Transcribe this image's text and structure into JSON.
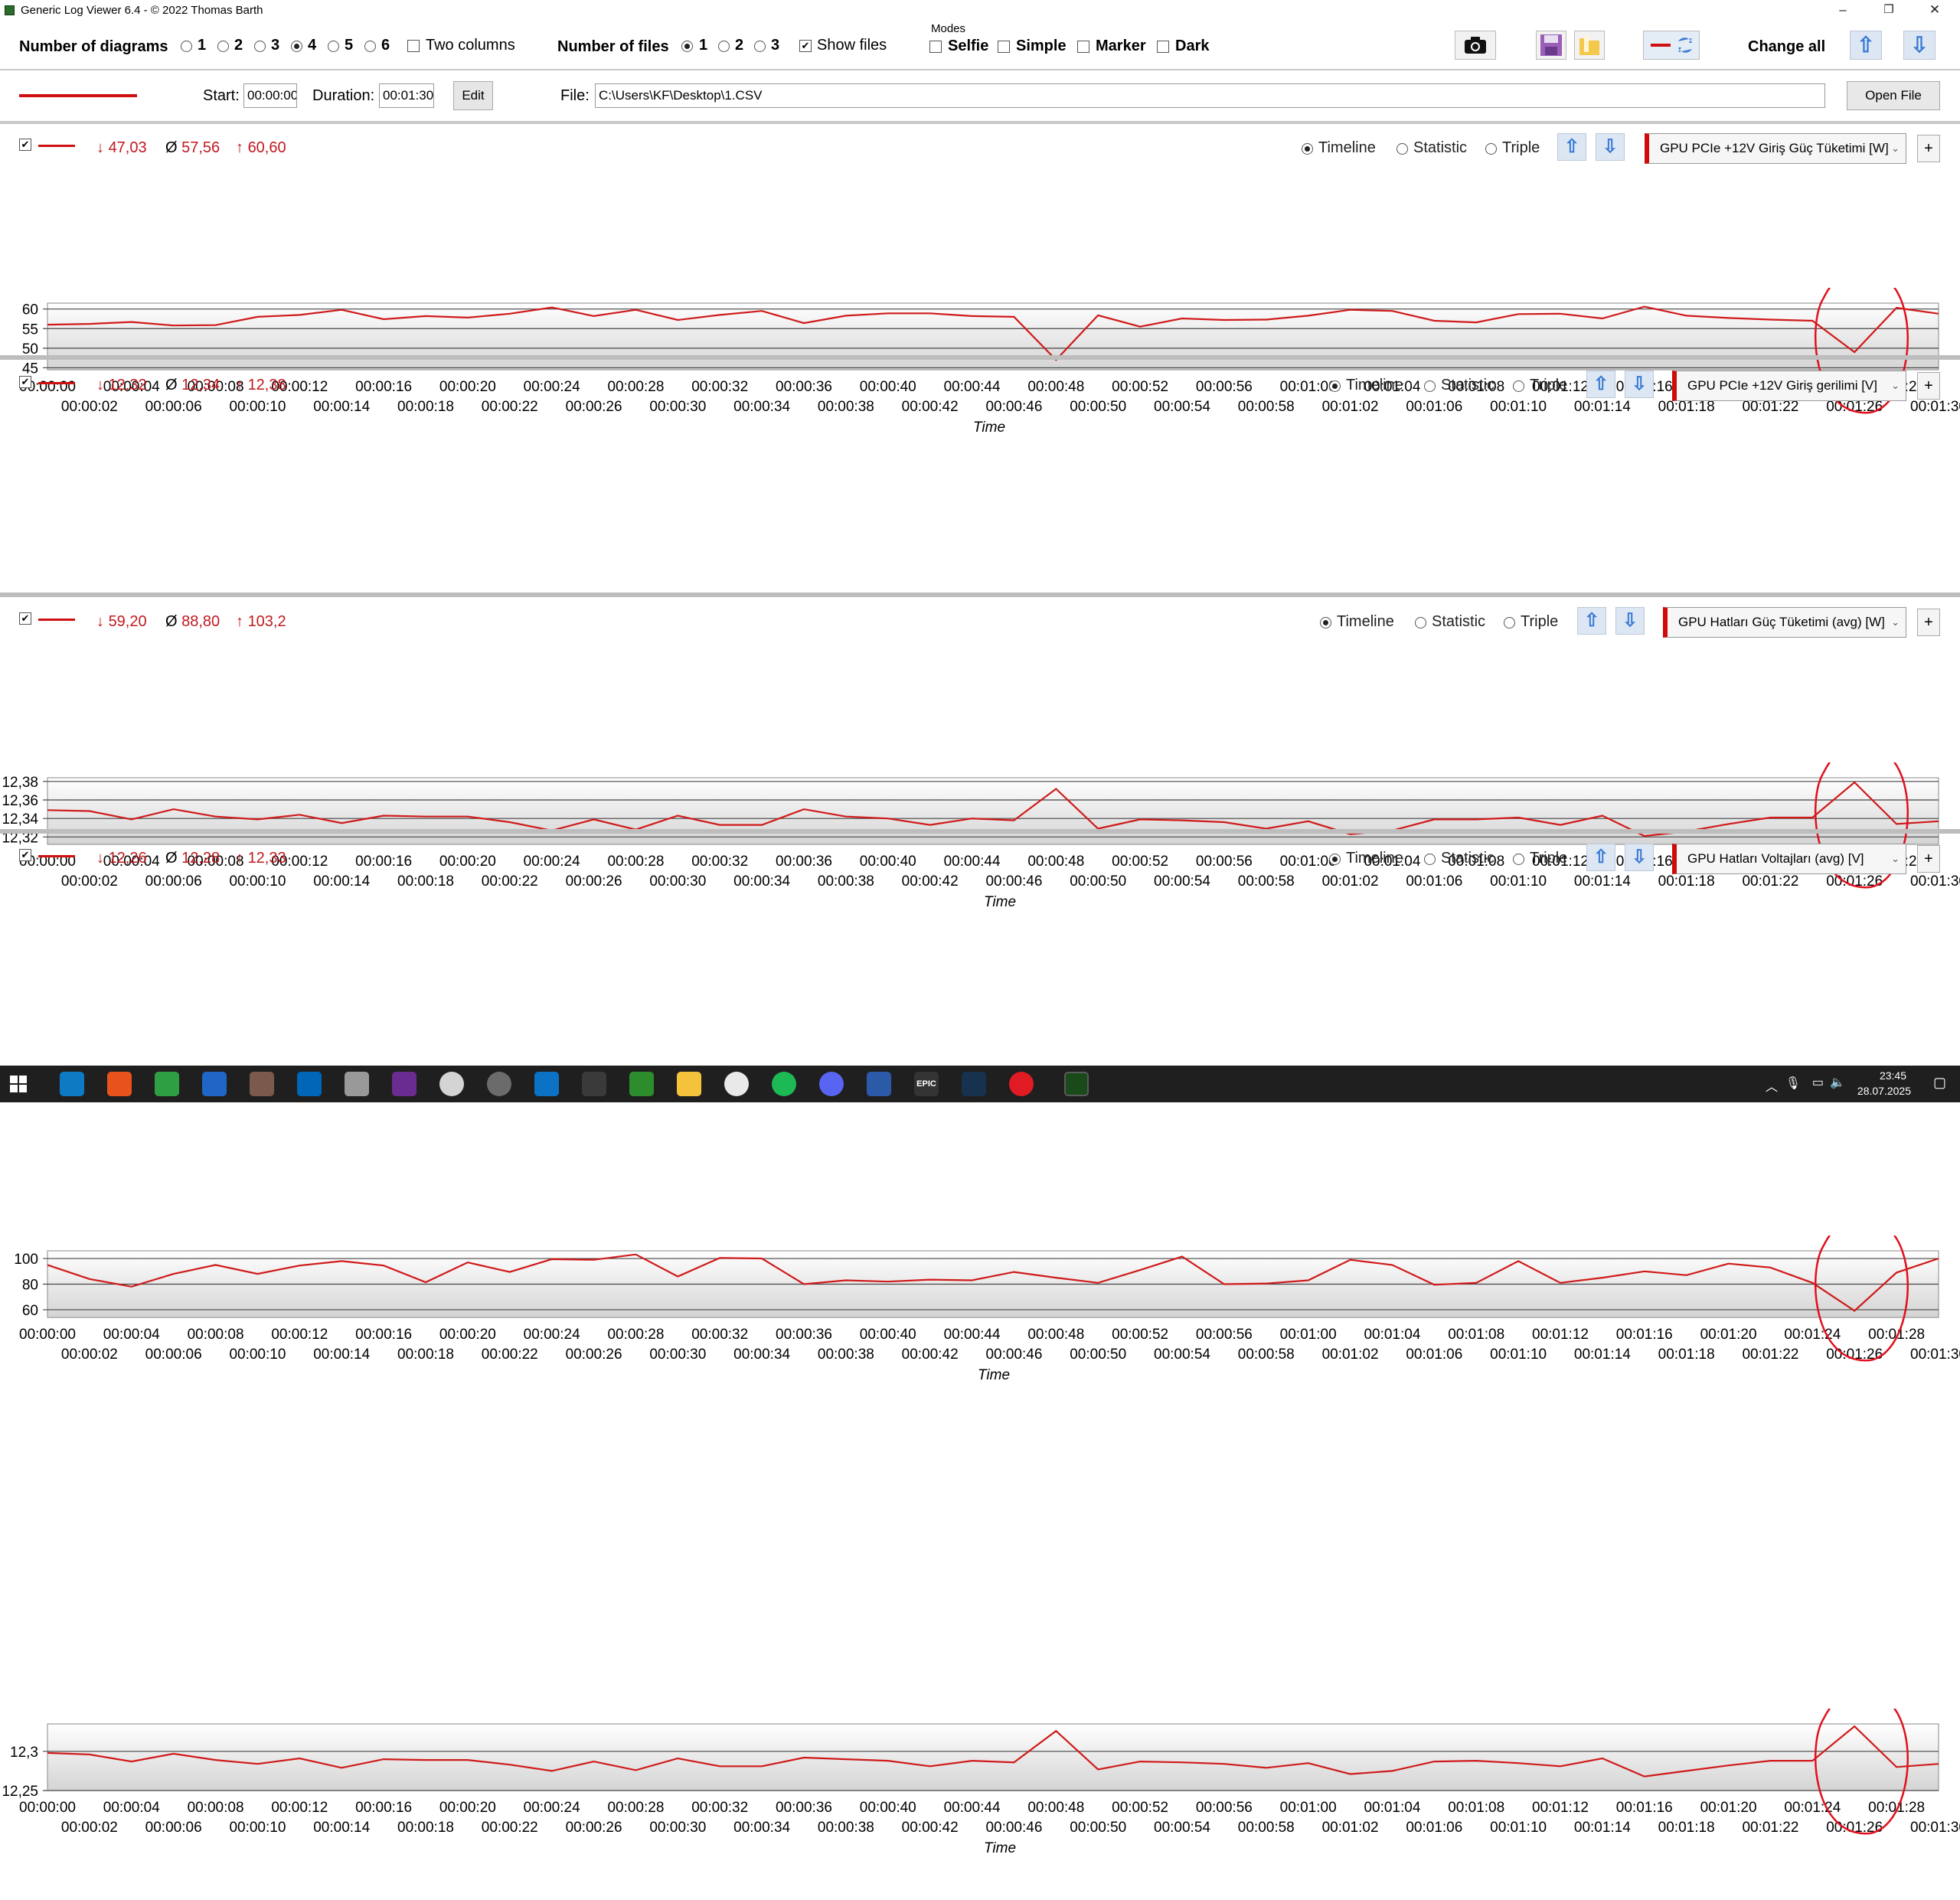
{
  "window": {
    "title": "Generic Log Viewer 6.4 - © 2022 Thomas Barth",
    "controls": [
      "–",
      "❐",
      "✕"
    ]
  },
  "toolbar": {
    "num_diagrams_label": "Number of diagrams",
    "diagram_options": [
      "1",
      "2",
      "3",
      "4",
      "5",
      "6"
    ],
    "diagram_selected": "4",
    "two_columns_label": "Two columns",
    "num_files_label": "Number of files",
    "file_options": [
      "1",
      "2",
      "3"
    ],
    "file_selected": "1",
    "show_files_label": "Show files",
    "modes_label": "Modes",
    "modes": [
      "Selfie",
      "Simple",
      "Marker",
      "Dark"
    ],
    "change_all_label": "Change all",
    "icons": [
      "camera-icon",
      "save-icon",
      "folder-icon",
      "line-swap-icon",
      "arrow-up-icon",
      "arrow-down-icon"
    ]
  },
  "filebar": {
    "start_label": "Start:",
    "start_value": "00:00:00",
    "duration_label": "Duration:",
    "duration_value": "00:01:30",
    "edit_label": "Edit",
    "file_label": "File:",
    "file_value": "C:\\Users\\KF\\Desktop\\1.CSV",
    "open_file_label": "Open File"
  },
  "view_modes": [
    "Timeline",
    "Statistic",
    "Triple"
  ],
  "time_axis": {
    "label": "Time",
    "ticks_top": [
      "00:00:00",
      "00:00:04",
      "00:00:08",
      "00:00:12",
      "00:00:16",
      "00:00:20",
      "00:00:24",
      "00:00:28",
      "00:00:32",
      "00:00:36",
      "00:00:40",
      "00:00:44",
      "00:00:48",
      "00:00:52",
      "00:00:56",
      "00:01:00",
      "00:01:04",
      "00:01:08",
      "00:01:12",
      "00:01:16",
      "00:01:20",
      "00:01:24",
      "00:01:28"
    ],
    "ticks_bottom": [
      "00:00:02",
      "00:00:06",
      "00:00:10",
      "00:00:14",
      "00:00:18",
      "00:00:22",
      "00:00:26",
      "00:00:30",
      "00:00:34",
      "00:00:38",
      "00:00:42",
      "00:00:46",
      "00:00:50",
      "00:00:54",
      "00:00:58",
      "00:01:02",
      "00:01:06",
      "00:01:10",
      "00:01:14",
      "00:01:18",
      "00:01:22",
      "00:01:26",
      "00:01:30"
    ]
  },
  "colors": {
    "series": "#d01a1a",
    "annotation": "#e0101e",
    "selector_bar": "#d00a0a"
  },
  "panels": [
    {
      "min": "47,03",
      "avg": "57,56",
      "max": "60,60",
      "view_selected": "Timeline",
      "sensor": "GPU PCIe +12V Giriş Güç Tüketimi [W]",
      "y_ticks": [
        "60",
        "55",
        "50",
        "45"
      ],
      "ylim": [
        44.5,
        61.5
      ],
      "y_values": [
        60,
        55,
        50,
        45
      ]
    },
    {
      "min": "12,32",
      "avg": "12,34",
      "max": "12,38",
      "view_selected": "Timeline",
      "sensor": "GPU PCIe +12V Giriş gerilimi [V]",
      "y_ticks": [
        "12,38",
        "12,36",
        "12,34",
        "12,32"
      ],
      "ylim": [
        12.312,
        12.384
      ],
      "y_values": [
        12.38,
        12.36,
        12.34,
        12.32
      ]
    },
    {
      "min": "59,20",
      "avg": "88,80",
      "max": "103,2",
      "view_selected": "Timeline",
      "sensor": "GPU Hatları Güç Tüketimi (avg) [W]",
      "y_ticks": [
        "100",
        "80",
        "60"
      ],
      "ylim": [
        54,
        106
      ],
      "y_values": [
        100,
        80,
        60
      ]
    },
    {
      "min": "12,26",
      "avg": "12,28",
      "max": "12,33",
      "view_selected": "Timeline",
      "sensor": "GPU Hatları Voltajları (avg) [V]",
      "y_ticks": [
        "12,3",
        "12,25"
      ],
      "ylim": [
        12.25,
        12.335
      ],
      "y_values": [
        12.3,
        12.25
      ]
    }
  ],
  "chart_data": [
    {
      "type": "line",
      "series": [
        {
          "name": "GPU PCIe +12V Giriş Güç Tüketimi [W]",
          "x": [
            0,
            2,
            4,
            6,
            8,
            10,
            12,
            14,
            16,
            18,
            20,
            22,
            24,
            26,
            28,
            30,
            32,
            34,
            36,
            38,
            40,
            42,
            44,
            46,
            48,
            50,
            52,
            54,
            56,
            58,
            60,
            62,
            64,
            66,
            68,
            70,
            72,
            74,
            76,
            78,
            80,
            82,
            84,
            86,
            88,
            90
          ],
          "values": [
            56.0,
            56.2,
            56.7,
            55.8,
            55.9,
            58.0,
            58.5,
            59.8,
            57.4,
            58.2,
            57.8,
            58.8,
            60.4,
            58.2,
            59.8,
            57.2,
            58.5,
            59.5,
            56.4,
            58.3,
            58.9,
            58.9,
            58.2,
            58.0,
            47.0,
            58.4,
            55.5,
            57.6,
            57.2,
            57.3,
            58.3,
            59.8,
            59.5,
            57.0,
            56.6,
            58.7,
            58.8,
            57.6,
            60.6,
            58.3,
            57.7,
            57.3,
            57.0,
            49.0,
            60.3,
            58.8
          ]
        }
      ],
      "xlabel": "Time",
      "ylim": [
        44.5,
        61.5
      ]
    },
    {
      "type": "line",
      "series": [
        {
          "name": "GPU PCIe +12V Giriş gerilimi [V]",
          "x": [
            0,
            2,
            4,
            6,
            8,
            10,
            12,
            14,
            16,
            18,
            20,
            22,
            24,
            26,
            28,
            30,
            32,
            34,
            36,
            38,
            40,
            42,
            44,
            46,
            48,
            50,
            52,
            54,
            56,
            58,
            60,
            62,
            64,
            66,
            68,
            70,
            72,
            74,
            76,
            78,
            80,
            82,
            84,
            86,
            88,
            90
          ],
          "values": [
            12.349,
            12.348,
            12.339,
            12.35,
            12.342,
            12.339,
            12.344,
            12.335,
            12.343,
            12.342,
            12.342,
            12.336,
            12.327,
            12.339,
            12.328,
            12.343,
            12.333,
            12.333,
            12.35,
            12.342,
            12.34,
            12.333,
            12.34,
            12.338,
            12.372,
            12.329,
            12.339,
            12.338,
            12.336,
            12.329,
            12.337,
            12.323,
            12.327,
            12.339,
            12.339,
            12.341,
            12.333,
            12.343,
            12.321,
            12.326,
            12.334,
            12.341,
            12.341,
            12.379,
            12.334,
            12.337
          ]
        }
      ],
      "xlabel": "Time",
      "ylim": [
        12.312,
        12.384
      ]
    },
    {
      "type": "line",
      "series": [
        {
          "name": "GPU Hatları Güç Tüketimi (avg) [W]",
          "x": [
            0,
            2,
            4,
            6,
            8,
            10,
            12,
            14,
            16,
            18,
            20,
            22,
            24,
            26,
            28,
            30,
            32,
            34,
            36,
            38,
            40,
            42,
            44,
            46,
            48,
            50,
            52,
            54,
            56,
            58,
            60,
            62,
            64,
            66,
            68,
            70,
            72,
            74,
            76,
            78,
            80,
            82,
            84,
            86,
            88,
            90
          ],
          "values": [
            95.0,
            84.0,
            78.0,
            88.0,
            95.0,
            88.0,
            94.5,
            98.0,
            94.5,
            81.5,
            97.0,
            89.5,
            99.5,
            99.0,
            103.2,
            86.0,
            100.5,
            100.0,
            80.0,
            83.0,
            82.0,
            83.5,
            83.0,
            89.5,
            85.0,
            81.0,
            91.0,
            101.5,
            80.0,
            80.5,
            83.0,
            99.0,
            95.0,
            79.5,
            81.0,
            98.0,
            81.0,
            85.0,
            90.0,
            87.0,
            96.0,
            93.0,
            81.0,
            59.2,
            89.0,
            100.0
          ]
        }
      ],
      "xlabel": "Time",
      "ylim": [
        54,
        106
      ]
    },
    {
      "type": "line",
      "series": [
        {
          "name": "GPU Hatları Voltajları (avg) [V]",
          "x": [
            0,
            2,
            4,
            6,
            8,
            10,
            12,
            14,
            16,
            18,
            20,
            22,
            24,
            26,
            28,
            30,
            32,
            34,
            36,
            38,
            40,
            42,
            44,
            46,
            48,
            50,
            52,
            54,
            56,
            58,
            60,
            62,
            64,
            66,
            68,
            70,
            72,
            74,
            76,
            78,
            80,
            82,
            84,
            86,
            88,
            90
          ],
          "values": [
            12.298,
            12.296,
            12.287,
            12.297,
            12.289,
            12.284,
            12.291,
            12.279,
            12.29,
            12.289,
            12.289,
            12.283,
            12.275,
            12.287,
            12.276,
            12.291,
            12.281,
            12.281,
            12.292,
            12.29,
            12.288,
            12.281,
            12.288,
            12.286,
            12.326,
            12.277,
            12.287,
            12.286,
            12.284,
            12.279,
            12.285,
            12.271,
            12.275,
            12.287,
            12.288,
            12.285,
            12.281,
            12.291,
            12.268,
            12.275,
            12.282,
            12.288,
            12.288,
            12.332,
            12.28,
            12.284
          ]
        }
      ],
      "xlabel": "Time",
      "ylim": [
        12.25,
        12.335
      ]
    }
  ],
  "taskbar": {
    "time": "23:45",
    "date": "28.07.2025",
    "icons": [
      "windows-start-icon",
      "explorer-icon",
      "office-icon",
      "app-hex-icon",
      "app-m-icon",
      "app-calc-icon",
      "store-icon",
      "app-feather-icon",
      "app-doc-icon",
      "app-n-icon",
      "app-spiral-icon",
      "app-bars-icon",
      "app-folder2-icon",
      "xbox-icon",
      "folder-icon",
      "chrome-icon",
      "spotify-icon",
      "discord-icon",
      "app-blue-icon",
      "epic-icon",
      "steam-icon",
      "opera-icon",
      "terminal-icon"
    ],
    "epic_label": "EPIC"
  }
}
